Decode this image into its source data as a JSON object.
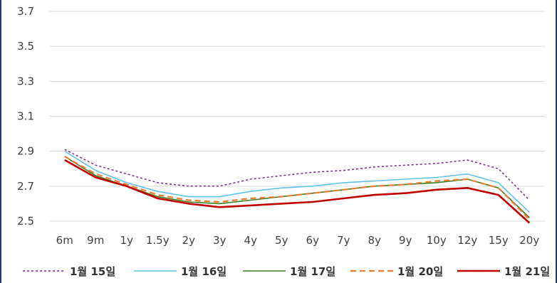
{
  "chart_data": {
    "type": "line",
    "categories": [
      "6m",
      "9m",
      "1y",
      "1.5y",
      "2y",
      "3y",
      "4y",
      "5y",
      "6y",
      "7y",
      "8y",
      "9y",
      "10y",
      "12y",
      "15y",
      "20y"
    ],
    "ylim": [
      2.5,
      3.7
    ],
    "yticks": [
      "2.5",
      "2.7",
      "2.9",
      "3.1",
      "3.3",
      "3.5",
      "3.7"
    ],
    "grid": true,
    "legend_position": "bottom",
    "series": [
      {
        "name": "1월 15일",
        "color": "#7a2a8c",
        "style": "dotted",
        "values": [
          2.91,
          2.82,
          2.77,
          2.72,
          2.7,
          2.7,
          2.74,
          2.76,
          2.78,
          2.79,
          2.81,
          2.82,
          2.83,
          2.85,
          2.8,
          2.62
        ]
      },
      {
        "name": "1월 16일",
        "color": "#5fc3e8",
        "style": "solid",
        "values": [
          2.9,
          2.79,
          2.72,
          2.67,
          2.64,
          2.64,
          2.67,
          2.69,
          2.7,
          2.72,
          2.73,
          2.74,
          2.75,
          2.77,
          2.72,
          2.55
        ]
      },
      {
        "name": "1월 17일",
        "color": "#3e7d1f",
        "style": "solid",
        "values": [
          2.87,
          2.76,
          2.7,
          2.64,
          2.61,
          2.6,
          2.62,
          2.64,
          2.66,
          2.68,
          2.7,
          2.71,
          2.72,
          2.74,
          2.69,
          2.52
        ]
      },
      {
        "name": "1월 20일",
        "color": "#ed7d31",
        "style": "dashed",
        "values": [
          2.87,
          2.77,
          2.71,
          2.65,
          2.62,
          2.61,
          2.63,
          2.64,
          2.66,
          2.68,
          2.7,
          2.71,
          2.73,
          2.74,
          2.69,
          2.51
        ]
      },
      {
        "name": "1월 21일",
        "color": "#c00000",
        "style": "solid",
        "values": [
          2.85,
          2.75,
          2.7,
          2.63,
          2.6,
          2.58,
          2.59,
          2.6,
          2.61,
          2.63,
          2.65,
          2.66,
          2.68,
          2.69,
          2.65,
          2.49
        ]
      }
    ]
  }
}
